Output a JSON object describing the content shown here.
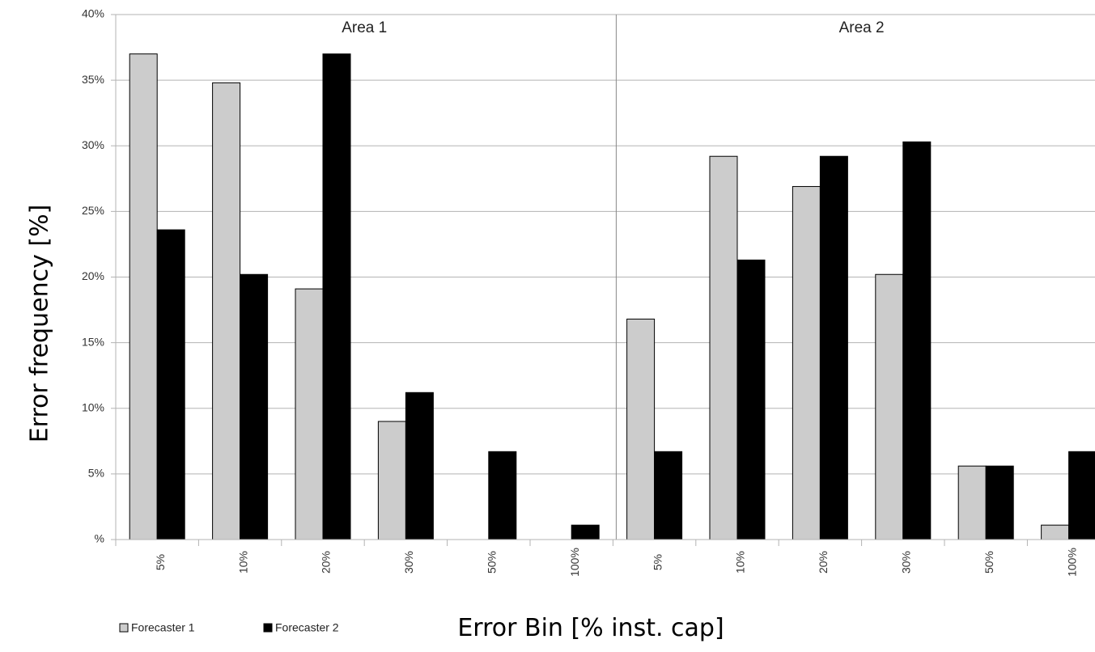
{
  "chart_data": {
    "type": "bar",
    "y_label": "Error frequency [%]",
    "x_label": "Error Bin [% inst. cap]",
    "annotations": [
      "Area 1",
      "Area 2"
    ],
    "categories": [
      "5%",
      "10%",
      "20%",
      "30%",
      "50%",
      "100%",
      "5%",
      "10%",
      "20%",
      "30%",
      "50%",
      "100%"
    ],
    "series": [
      {
        "name": "Forecaster 1",
        "color": "#cccccc",
        "values": [
          37.0,
          34.8,
          19.1,
          9.0,
          0,
          0,
          16.8,
          29.2,
          26.9,
          20.2,
          5.6,
          1.1
        ]
      },
      {
        "name": "Forecaster 2",
        "color": "#000000",
        "values": [
          23.6,
          20.2,
          37.0,
          11.2,
          6.7,
          1.1,
          6.7,
          21.3,
          29.2,
          30.3,
          5.6,
          6.7
        ]
      }
    ],
    "ylim": [
      0,
      40
    ],
    "yticks": [
      {
        "value": 0,
        "label": "%"
      },
      {
        "value": 5,
        "label": "5%"
      },
      {
        "value": 10,
        "label": "10%"
      },
      {
        "value": 15,
        "label": "15%"
      },
      {
        "value": 20,
        "label": "20%"
      },
      {
        "value": 25,
        "label": "25%"
      },
      {
        "value": 30,
        "label": "30%"
      },
      {
        "value": 35,
        "label": "35%"
      },
      {
        "value": 40,
        "label": "40%"
      }
    ],
    "grid": true,
    "legend": "bottom-left"
  }
}
